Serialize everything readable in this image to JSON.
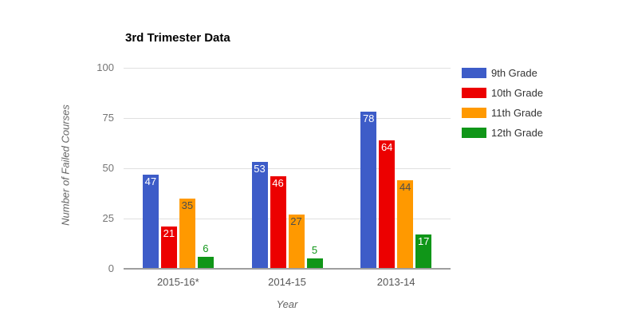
{
  "chart_data": {
    "type": "bar",
    "title": "3rd Trimester Data",
    "xlabel": "Year",
    "ylabel": "Number of Failed Courses",
    "ylim": [
      0,
      100
    ],
    "yticks": [
      0,
      25,
      50,
      75,
      100
    ],
    "grid": true,
    "legend_position": "right",
    "categories": [
      "2015-16*",
      "2014-15",
      "2013-14"
    ],
    "series": [
      {
        "name": "9th Grade",
        "color": "#3d5cc8",
        "label_color_inside": "#ffffff",
        "values": [
          47,
          53,
          78
        ]
      },
      {
        "name": "10th Grade",
        "color": "#ec0000",
        "label_color_inside": "#ffffff",
        "values": [
          21,
          46,
          64
        ]
      },
      {
        "name": "11th Grade",
        "color": "#ff9900",
        "label_color_inside": "#4d4d4d",
        "values": [
          35,
          27,
          44
        ]
      },
      {
        "name": "12th Grade",
        "color": "#109618",
        "label_color_inside": "#ffffff",
        "values": [
          6,
          5,
          17
        ]
      }
    ],
    "colors": {
      "gridline": "#e0e0e0",
      "baseline": "#9e9e9e",
      "y_tick_text": "#757575",
      "x_label_text": "#555555",
      "axis_title_text": "#666666",
      "legend_text": "#333333",
      "title_text": "#000000",
      "background": "#ffffff"
    }
  }
}
